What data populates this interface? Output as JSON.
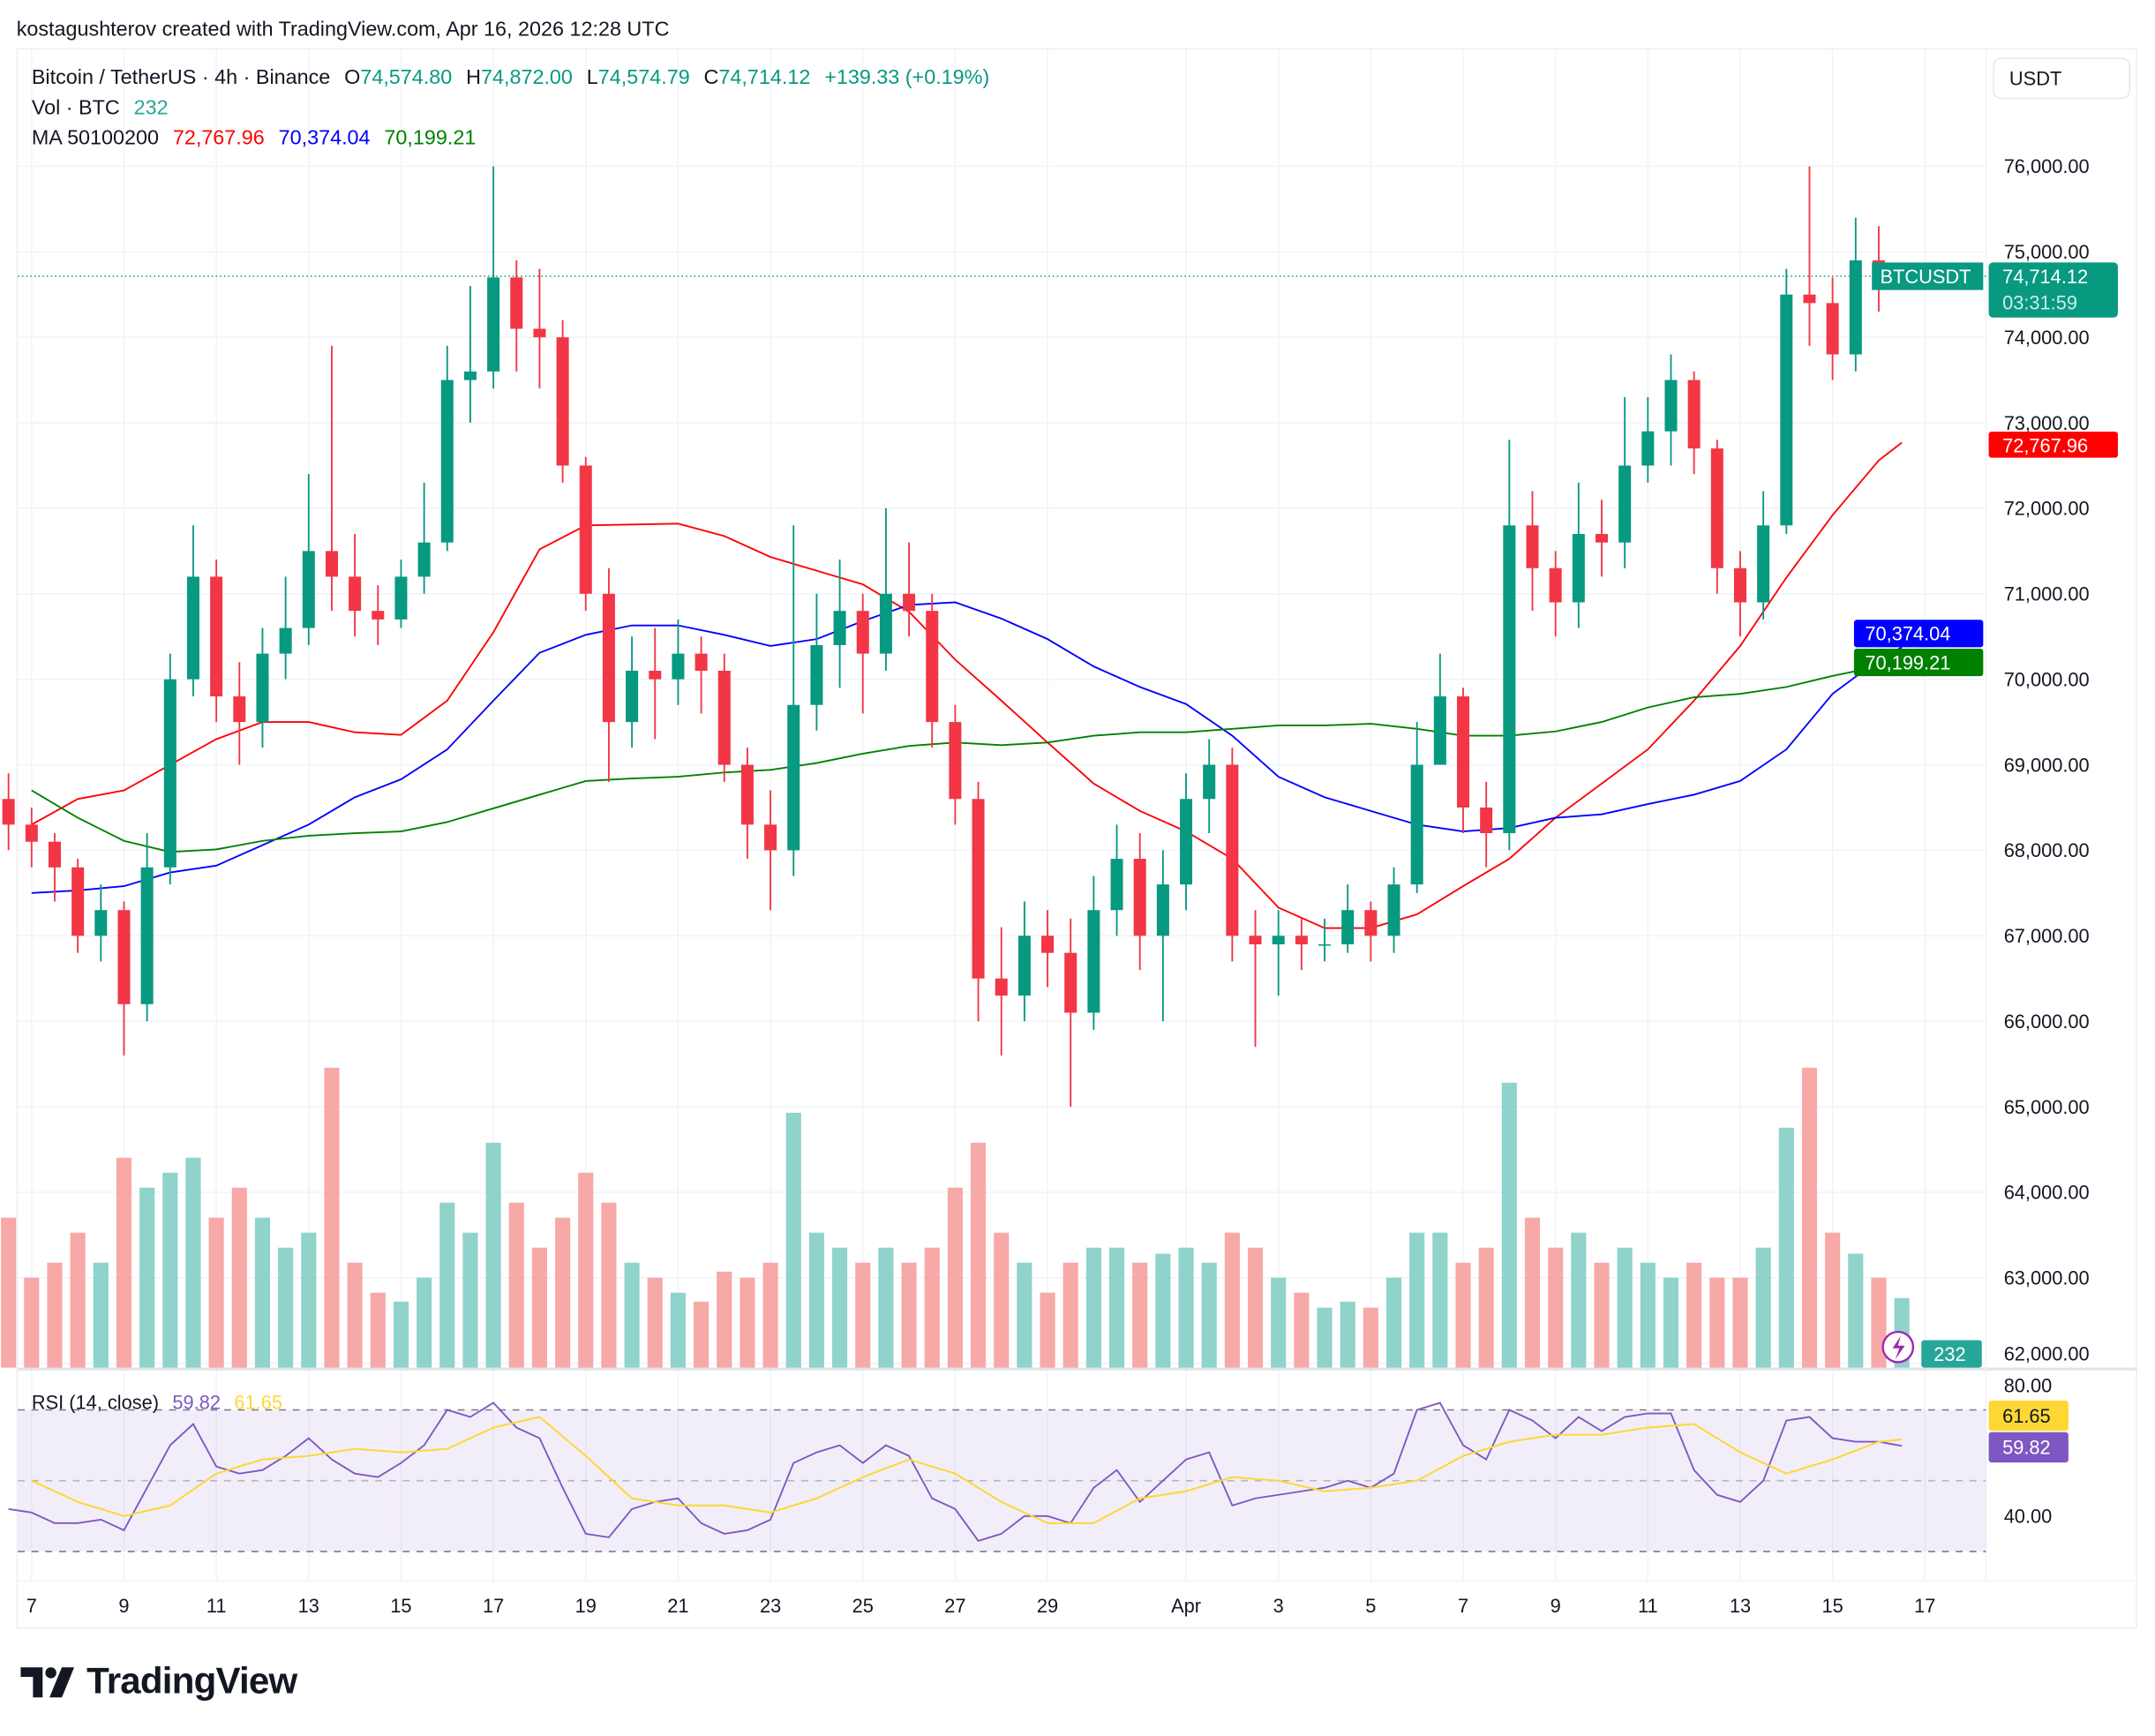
{
  "credit": "kostagushterov created with TradingView.com, Apr 16, 2026 12:28 UTC",
  "legend": {
    "symbol": "Bitcoin / TetherUS · 4h · Binance",
    "o_label": "O",
    "o": "74,574.80",
    "h_label": "H",
    "h": "74,872.00",
    "l_label": "L",
    "l": "74,574.79",
    "c_label": "C",
    "c": "74,714.12",
    "change": "+139.33 (+0.19%)",
    "vol_label": "Vol · BTC",
    "vol": "232",
    "ma_label": "MA 50100200",
    "ma50": "72,767.96",
    "ma100": "70,374.04",
    "ma200": "70,199.21",
    "rsi_label": "RSI (14, close)",
    "rsi": "59.82",
    "rsi_ma": "61.65"
  },
  "currency_button": "USDT",
  "price_tag": {
    "symbol": "BTCUSDT",
    "price": "74,714.12",
    "countdown": "03:31:59"
  },
  "branding": "TradingView",
  "colors": {
    "up": "#089981",
    "down": "#f23645",
    "ma50": "#ff0000",
    "ma100": "#0000ff",
    "ma200": "#008000",
    "rsi": "#7e57c2",
    "rsi_ma": "#fdd835",
    "vol_up": "#8fd3cb",
    "vol_down": "#f7a9a7"
  },
  "chart_data": [
    {
      "type": "candlestick",
      "title": "Bitcoin / TetherUS · 4h · Binance",
      "ylim": [
        62000,
        76500
      ],
      "y_ticks": [
        "76,000.00",
        "75,000.00",
        "74,000.00",
        "73,000.00",
        "72,000.00",
        "71,000.00",
        "70,000.00",
        "69,000.00",
        "68,000.00",
        "67,000.00",
        "66,000.00",
        "65,000.00",
        "64,000.00",
        "63,000.00",
        "62,000.00"
      ],
      "grid": true,
      "candles": [
        [
          "03-06 12",
          68600,
          68900,
          68000,
          68300,
          500
        ],
        [
          "03-07 00",
          68300,
          68500,
          67800,
          68100,
          300
        ],
        [
          "03-07 12",
          68100,
          68200,
          67400,
          67800,
          350
        ],
        [
          "03-08 00",
          67800,
          67900,
          66800,
          67000,
          450
        ],
        [
          "03-08 12",
          67000,
          67600,
          66700,
          67300,
          350
        ],
        [
          "03-09 00",
          67300,
          67400,
          65600,
          66200,
          700
        ],
        [
          "03-09 12",
          66200,
          68200,
          66000,
          67800,
          600
        ],
        [
          "03-10 00",
          67800,
          70300,
          67600,
          70000,
          650
        ],
        [
          "03-10 12",
          70000,
          71800,
          69800,
          71200,
          700
        ],
        [
          "03-11 00",
          71200,
          71400,
          69500,
          69800,
          500
        ],
        [
          "03-11 12",
          69800,
          70200,
          69000,
          69500,
          600
        ],
        [
          "03-12 00",
          69500,
          70600,
          69200,
          70300,
          500
        ],
        [
          "03-12 12",
          70300,
          71200,
          70000,
          70600,
          400
        ],
        [
          "03-13 00",
          70600,
          72400,
          70400,
          71500,
          450
        ],
        [
          "03-13 12",
          71500,
          73900,
          70800,
          71200,
          1000
        ],
        [
          "03-14 00",
          71200,
          71700,
          70500,
          70800,
          350
        ],
        [
          "03-14 12",
          70800,
          71100,
          70400,
          70700,
          250
        ],
        [
          "03-15 00",
          70700,
          71400,
          70600,
          71200,
          220
        ],
        [
          "03-15 12",
          71200,
          72300,
          71000,
          71600,
          300
        ],
        [
          "03-16 00",
          71600,
          73900,
          71500,
          73500,
          550
        ],
        [
          "03-16 12",
          73500,
          74600,
          73000,
          73600,
          450
        ],
        [
          "03-17 00",
          73600,
          76000,
          73400,
          74700,
          750
        ],
        [
          "03-17 12",
          74700,
          74900,
          73600,
          74100,
          550
        ],
        [
          "03-18 00",
          74100,
          74800,
          73400,
          74000,
          400
        ],
        [
          "03-18 12",
          74000,
          74200,
          72300,
          72500,
          500
        ],
        [
          "03-19 00",
          72500,
          72600,
          70800,
          71000,
          650
        ],
        [
          "03-19 12",
          71000,
          71300,
          68800,
          69500,
          550
        ],
        [
          "03-20 00",
          69500,
          70500,
          69200,
          70100,
          350
        ],
        [
          "03-20 12",
          70100,
          70600,
          69300,
          70000,
          300
        ],
        [
          "03-21 00",
          70000,
          70700,
          69700,
          70300,
          250
        ],
        [
          "03-21 12",
          70300,
          70500,
          69600,
          70100,
          220
        ],
        [
          "03-22 00",
          70100,
          70300,
          68800,
          69000,
          320
        ],
        [
          "03-22 12",
          69000,
          69200,
          67900,
          68300,
          300
        ],
        [
          "03-23 00",
          68300,
          68700,
          67300,
          68000,
          350
        ],
        [
          "03-23 12",
          68000,
          71800,
          67700,
          69700,
          850
        ],
        [
          "03-24 00",
          69700,
          71000,
          69400,
          70400,
          450
        ],
        [
          "03-24 12",
          70400,
          71400,
          69900,
          70800,
          400
        ],
        [
          "03-25 00",
          70800,
          71000,
          69600,
          70300,
          350
        ],
        [
          "03-25 12",
          70300,
          72000,
          70100,
          71000,
          400
        ],
        [
          "03-26 00",
          71000,
          71600,
          70500,
          70800,
          350
        ],
        [
          "03-26 12",
          70800,
          71000,
          69200,
          69500,
          400
        ],
        [
          "03-27 00",
          69500,
          69700,
          68300,
          68600,
          600
        ],
        [
          "03-27 12",
          68600,
          68800,
          66000,
          66500,
          750
        ],
        [
          "03-28 00",
          66500,
          67100,
          65600,
          66300,
          450
        ],
        [
          "03-28 12",
          66300,
          67400,
          66000,
          67000,
          350
        ],
        [
          "03-29 00",
          67000,
          67300,
          66400,
          66800,
          250
        ],
        [
          "03-29 12",
          66800,
          67200,
          65000,
          66100,
          350
        ],
        [
          "03-30 00",
          66100,
          67700,
          65900,
          67300,
          400
        ],
        [
          "03-30 12",
          67300,
          68300,
          67000,
          67900,
          400
        ],
        [
          "03-31 00",
          67900,
          68200,
          66600,
          67000,
          350
        ],
        [
          "03-31 12",
          67000,
          68000,
          66000,
          67600,
          380
        ],
        [
          "04-01 00",
          67600,
          68900,
          67300,
          68600,
          400
        ],
        [
          "04-01 12",
          68600,
          69300,
          68200,
          69000,
          350
        ],
        [
          "04-02 00",
          69000,
          69200,
          66700,
          67000,
          450
        ],
        [
          "04-02 12",
          67000,
          67300,
          65700,
          66900,
          400
        ],
        [
          "04-03 00",
          66900,
          67300,
          66300,
          67000,
          300
        ],
        [
          "04-03 12",
          67000,
          67200,
          66600,
          66900,
          250
        ],
        [
          "04-04 00",
          66900,
          67200,
          66700,
          66900,
          200
        ],
        [
          "04-04 12",
          66900,
          67600,
          66800,
          67300,
          220
        ],
        [
          "04-05 00",
          67300,
          67400,
          66700,
          67000,
          200
        ],
        [
          "04-05 12",
          67000,
          67800,
          66800,
          67600,
          300
        ],
        [
          "04-06 00",
          67600,
          69500,
          67500,
          69000,
          450
        ],
        [
          "04-06 12",
          69000,
          70300,
          69000,
          69800,
          450
        ],
        [
          "04-07 00",
          69800,
          69900,
          68200,
          68500,
          350
        ],
        [
          "04-07 12",
          68500,
          68800,
          67800,
          68200,
          400
        ],
        [
          "04-08 00",
          68200,
          72800,
          68000,
          71800,
          950
        ],
        [
          "04-08 12",
          71800,
          72200,
          70800,
          71300,
          500
        ],
        [
          "04-09 00",
          71300,
          71500,
          70500,
          70900,
          400
        ],
        [
          "04-09 12",
          70900,
          72300,
          70600,
          71700,
          450
        ],
        [
          "04-10 00",
          71700,
          72100,
          71200,
          71600,
          350
        ],
        [
          "04-10 12",
          71600,
          73300,
          71300,
          72500,
          400
        ],
        [
          "04-11 00",
          72500,
          73300,
          72300,
          72900,
          350
        ],
        [
          "04-11 12",
          72900,
          73800,
          72500,
          73500,
          300
        ],
        [
          "04-12 00",
          73500,
          73600,
          72400,
          72700,
          350
        ],
        [
          "04-12 12",
          72700,
          72800,
          71000,
          71300,
          300
        ],
        [
          "04-13 00",
          71300,
          71500,
          70500,
          70900,
          300
        ],
        [
          "04-13 12",
          70900,
          72200,
          70700,
          71800,
          400
        ],
        [
          "04-14 00",
          71800,
          74800,
          71700,
          74500,
          800
        ],
        [
          "04-14 12",
          74500,
          76000,
          73900,
          74400,
          1000
        ],
        [
          "04-15 00",
          74400,
          74700,
          73500,
          73800,
          450
        ],
        [
          "04-15 12",
          73800,
          75400,
          73600,
          74900,
          380
        ],
        [
          "04-16 00",
          74900,
          75300,
          74300,
          74575,
          300
        ],
        [
          "04-16 12",
          74574.8,
          74872,
          74574.79,
          74714.12,
          232
        ]
      ],
      "ma": [
        {
          "name": "MA 50",
          "value": "72,767.96",
          "daily_from": "03-07",
          "values": [
            68300,
            68600,
            68700,
            69000,
            69300,
            69500,
            69500,
            69380,
            69350,
            69750,
            70550,
            71520,
            71800,
            71810,
            71820,
            71675,
            71430,
            71270,
            71110,
            70790,
            70230,
            69750,
            69260,
            68780,
            68460,
            68220,
            67900,
            67330,
            67090,
            67090,
            67250,
            67580,
            67900,
            68380,
            68780,
            69180,
            69750,
            70390,
            71190,
            71920,
            72560,
            72768
          ]
        },
        {
          "name": "MA 100",
          "value": "70,374.04",
          "daily_from": "03-07",
          "values": [
            67500,
            67530,
            67580,
            67740,
            67820,
            68060,
            68300,
            68620,
            68830,
            69180,
            69750,
            70310,
            70520,
            70630,
            70630,
            70520,
            70390,
            70470,
            70680,
            70870,
            70900,
            70710,
            70470,
            70150,
            69910,
            69710,
            69340,
            68860,
            68620,
            68460,
            68300,
            68220,
            68260,
            68380,
            68420,
            68540,
            68650,
            68810,
            69180,
            69830,
            70230,
            70374
          ]
        },
        {
          "name": "MA 200",
          "value": "70,199.21",
          "daily_from": "03-07",
          "values": [
            68700,
            68380,
            68110,
            67980,
            68010,
            68110,
            68170,
            68200,
            68220,
            68330,
            68490,
            68650,
            68810,
            68840,
            68860,
            68910,
            68940,
            69020,
            69130,
            69220,
            69260,
            69230,
            69260,
            69340,
            69380,
            69380,
            69420,
            69460,
            69460,
            69480,
            69420,
            69340,
            69340,
            69390,
            69500,
            69670,
            69790,
            69830,
            69910,
            70040,
            70150,
            70199
          ]
        }
      ],
      "volume_label": "232"
    },
    {
      "type": "line",
      "title": "RSI (14, close)",
      "ylim": [
        20,
        80
      ],
      "y_ticks": [
        "80.00",
        "40.00"
      ],
      "bands": [
        70,
        50,
        30
      ],
      "rsi": [
        42,
        41,
        38,
        38,
        39,
        36,
        48,
        60,
        66,
        54,
        52,
        53,
        57,
        62,
        56,
        52,
        51,
        55,
        60,
        70,
        68,
        72,
        65,
        62,
        48,
        35,
        34,
        42,
        44,
        45,
        38,
        35,
        36,
        39,
        55,
        58,
        60,
        55,
        60,
        57,
        45,
        42,
        33,
        35,
        40,
        40,
        38,
        48,
        53,
        44,
        50,
        56,
        58,
        43,
        45,
        46,
        47,
        48,
        50,
        48,
        52,
        70,
        72,
        60,
        56,
        70,
        67,
        62,
        68,
        64,
        68,
        69,
        69,
        53,
        46,
        44,
        50,
        67,
        68,
        62,
        61,
        61,
        59.82
      ],
      "rsi_ma_daily_from": "03-07",
      "rsi_ma": [
        50,
        44,
        40,
        43,
        52,
        56,
        57,
        59,
        58,
        59,
        65,
        68,
        57,
        45,
        43,
        43,
        41,
        45,
        51,
        56,
        52,
        44,
        38,
        38,
        45,
        47,
        51,
        50,
        47,
        48,
        50,
        57,
        61,
        63,
        63,
        65,
        66,
        58,
        52,
        56,
        61,
        61.65
      ]
    }
  ],
  "time_ticks": [
    {
      "label": "7",
      "date": "03-07"
    },
    {
      "label": "9",
      "date": "03-09"
    },
    {
      "label": "11",
      "date": "03-11"
    },
    {
      "label": "13",
      "date": "03-13"
    },
    {
      "label": "15",
      "date": "03-15"
    },
    {
      "label": "17",
      "date": "03-17"
    },
    {
      "label": "19",
      "date": "03-19"
    },
    {
      "label": "21",
      "date": "03-21"
    },
    {
      "label": "23",
      "date": "03-23"
    },
    {
      "label": "25",
      "date": "03-25"
    },
    {
      "label": "27",
      "date": "03-27"
    },
    {
      "label": "29",
      "date": "03-29"
    },
    {
      "label": "Apr",
      "date": "04-01"
    },
    {
      "label": "3",
      "date": "04-03"
    },
    {
      "label": "5",
      "date": "04-05"
    },
    {
      "label": "7",
      "date": "04-07"
    },
    {
      "label": "9",
      "date": "04-09"
    },
    {
      "label": "11",
      "date": "04-11"
    },
    {
      "label": "13",
      "date": "04-13"
    },
    {
      "label": "15",
      "date": "04-15"
    },
    {
      "label": "17",
      "date": "04-17"
    }
  ]
}
